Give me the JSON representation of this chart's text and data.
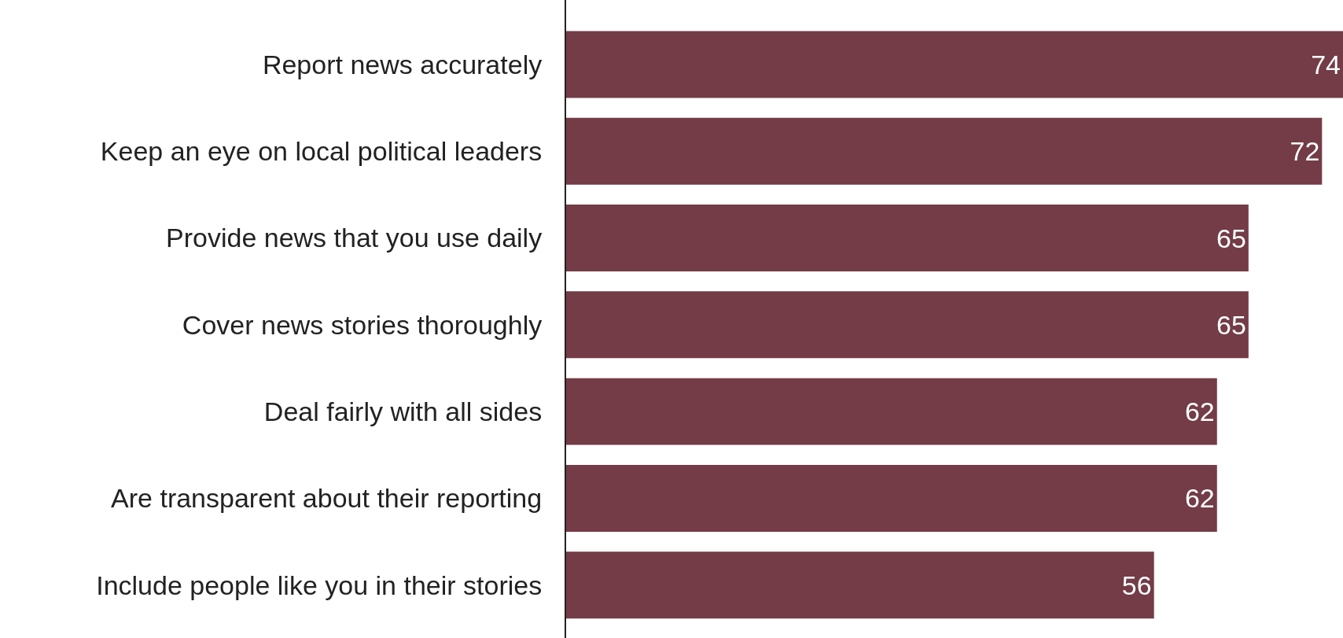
{
  "chart_data": {
    "type": "bar",
    "orientation": "horizontal",
    "categories": [
      "Report news accurately",
      "Keep an eye on local political leaders",
      "Provide news that you use daily",
      "Cover news stories thoroughly",
      "Deal fairly with all sides",
      "Are transparent about their reporting",
      "Include people like you in their stories"
    ],
    "values": [
      74,
      72,
      65,
      65,
      62,
      62,
      56
    ],
    "color": "#733c46",
    "xlim": [
      0,
      74
    ],
    "data_labels": true,
    "tick_labels": "y"
  }
}
